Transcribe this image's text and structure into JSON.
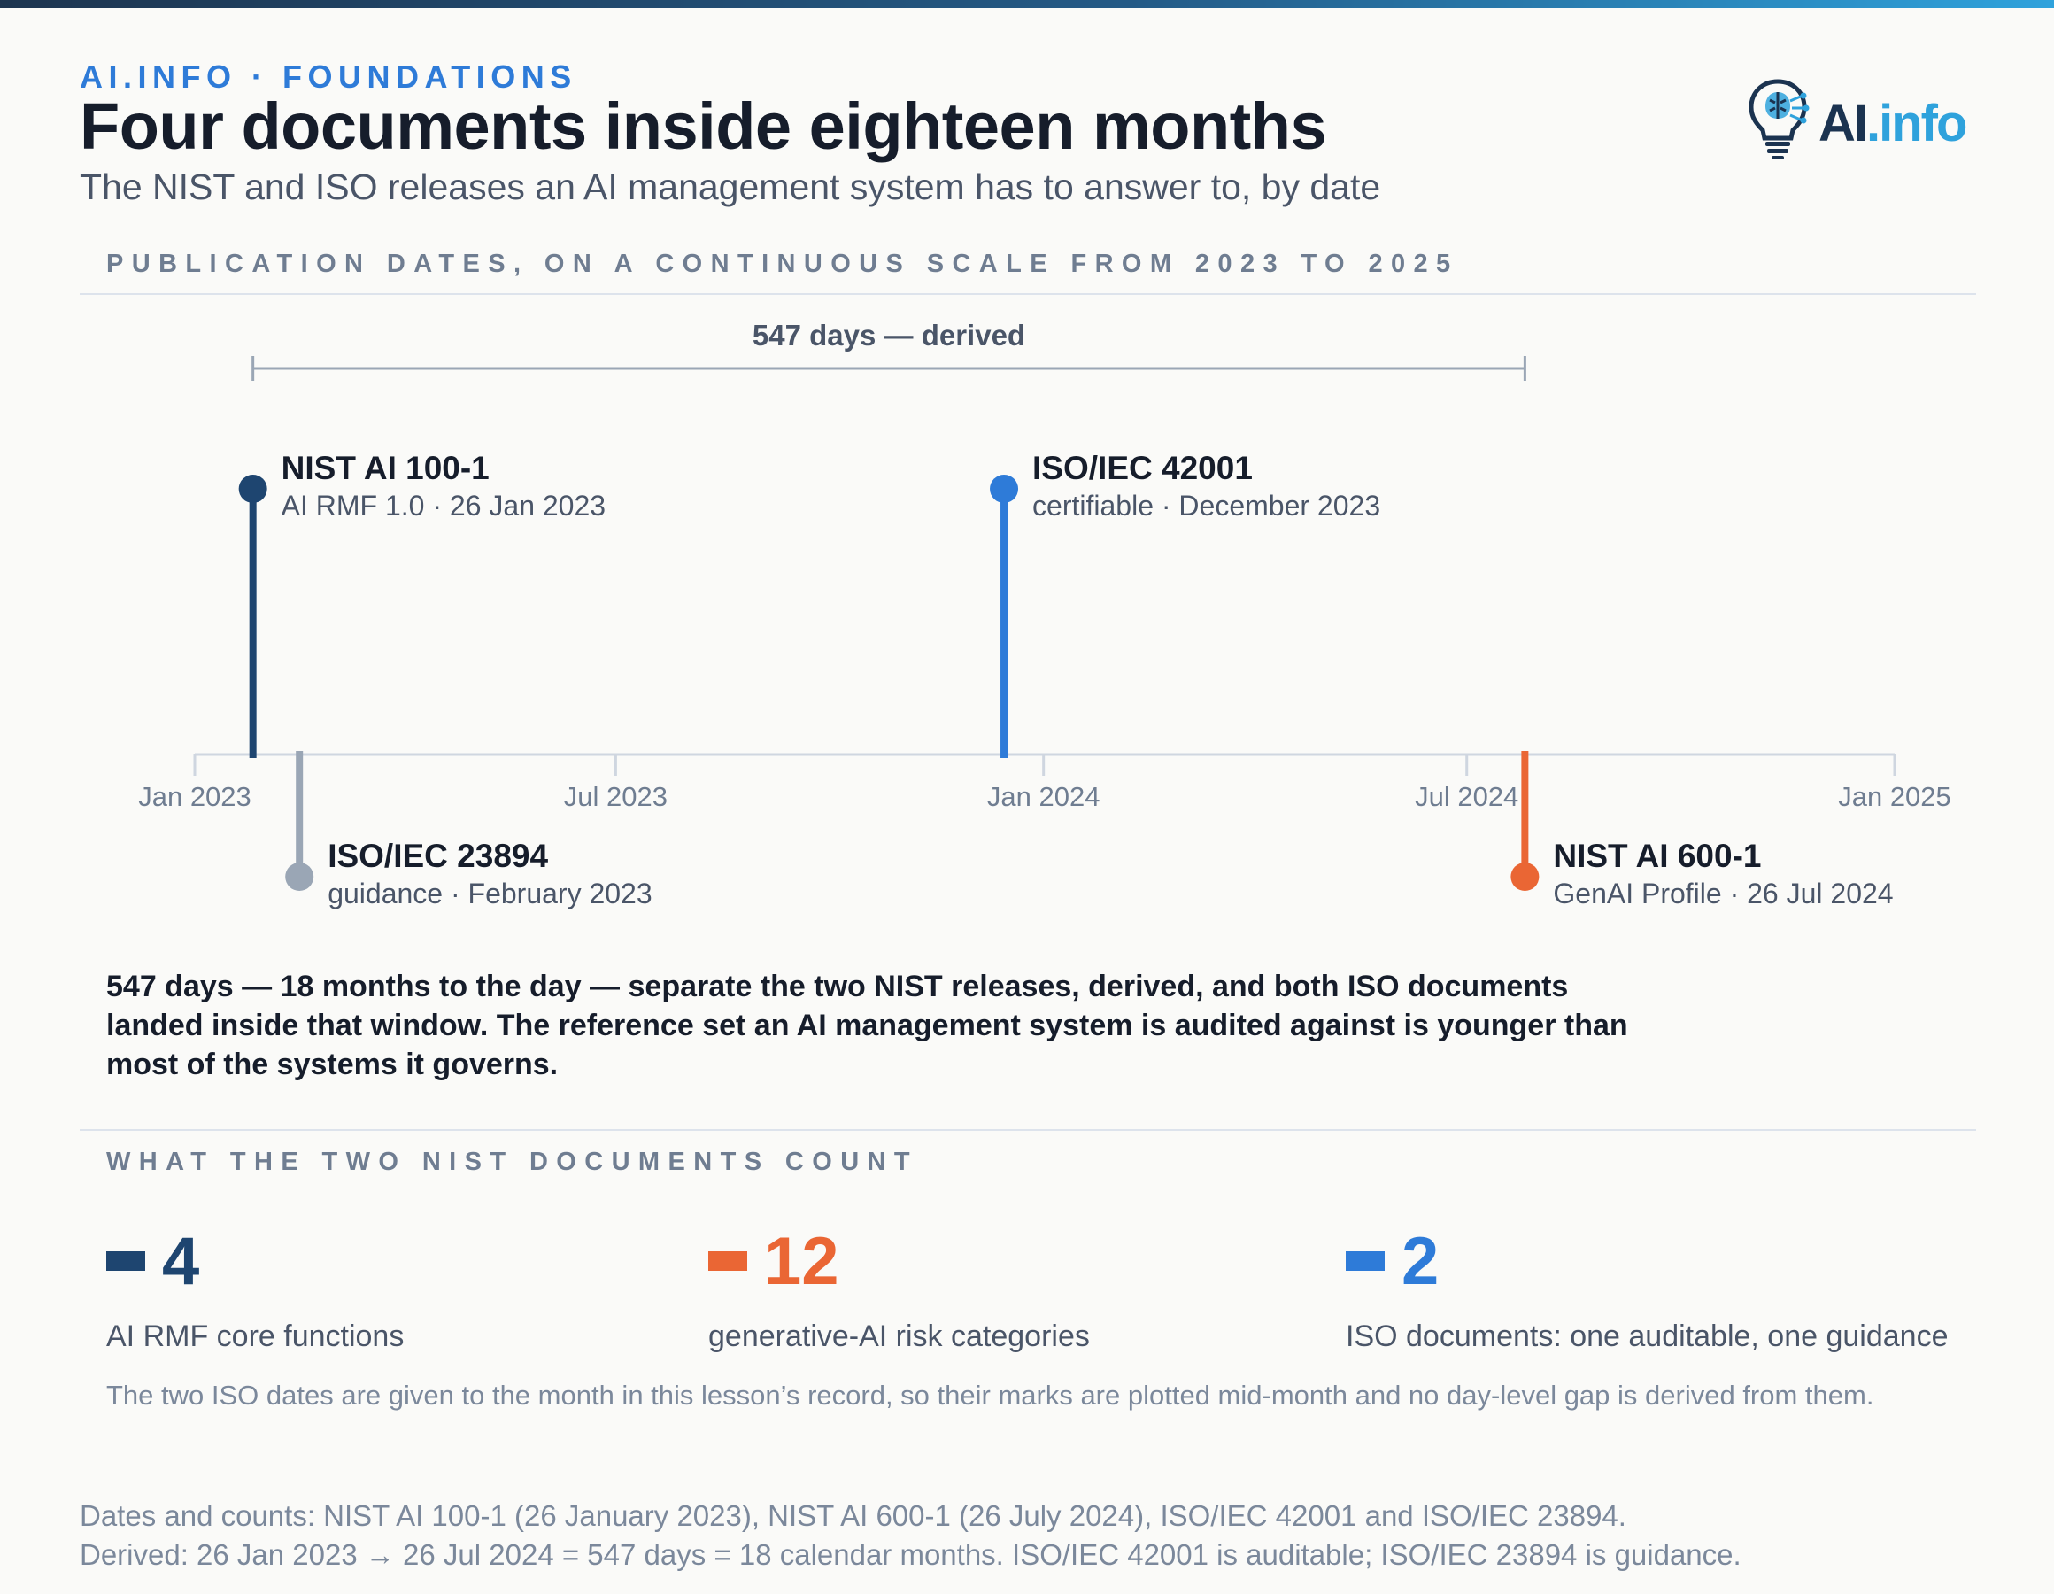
{
  "header": {
    "kicker": "AI.INFO · FOUNDATIONS",
    "title": "Four documents inside eighteen months",
    "subtitle": "The NIST and ISO releases an AI management system has to answer to, by date",
    "logo_text_a": "AI",
    "logo_text_b": ".info"
  },
  "timeline_section_label": "PUBLICATION DATES, ON A CONTINUOUS SCALE FROM 2023 TO 2025",
  "chart_data": {
    "type": "timeline",
    "x_axis": {
      "range": [
        "2023-01-01",
        "2025-01-01"
      ],
      "ticks": [
        {
          "date": "2023-01-01",
          "label": "Jan 2023"
        },
        {
          "date": "2023-07-01",
          "label": "Jul 2023"
        },
        {
          "date": "2024-01-01",
          "label": "Jan 2024"
        },
        {
          "date": "2024-07-01",
          "label": "Jul 2024"
        },
        {
          "date": "2025-01-01",
          "label": "Jan 2025"
        }
      ]
    },
    "events": [
      {
        "date": "2023-01-26",
        "name": "NIST AI 100-1",
        "detail": "AI RMF 1.0 · 26 Jan 2023",
        "color": "#1e4570",
        "side": "above"
      },
      {
        "date": "2023-02-15",
        "name": "ISO/IEC 23894",
        "detail": "guidance · February 2023",
        "color": "#9aa6b5",
        "side": "below"
      },
      {
        "date": "2023-12-15",
        "name": "ISO/IEC 42001",
        "detail": "certifiable · December 2023",
        "color": "#2e7bd8",
        "side": "above"
      },
      {
        "date": "2024-07-26",
        "name": "NIST AI 600-1",
        "detail": "GenAI Profile · 26 Jul 2024",
        "color": "#ea6634",
        "side": "below"
      }
    ],
    "span": {
      "from": "2023-01-26",
      "to": "2024-07-26",
      "label": "547 days — derived",
      "color": "#9aa6b5"
    }
  },
  "insight": "547 days — 18 months to the day — separate the two NIST releases, derived, and both ISO documents landed inside that window. The reference set an AI management system is audited against is younger than most of the systems it governs.",
  "counts_section_label": "WHAT THE TWO NIST DOCUMENTS COUNT",
  "stats": [
    {
      "value": "4",
      "label": "AI RMF core functions",
      "color": "#1e4570"
    },
    {
      "value": "12",
      "label": "generative-AI risk categories",
      "color": "#ea6634"
    },
    {
      "value": "2",
      "label": "ISO documents: one auditable, one guidance",
      "color": "#2e7bd8"
    }
  ],
  "note": "The two ISO dates are given to the month in this lesson’s record, so their marks are plotted mid-month and no day-level gap is derived from them.",
  "footer": {
    "line1": "Dates and counts: NIST AI 100-1 (26 January 2023), NIST AI 600-1 (26 July 2024), ISO/IEC 42001 and ISO/IEC 23894.",
    "line2": "Derived: 26 Jan 2023 → 26 Jul 2024 = 547 days = 18 calendar months. ISO/IEC 42001 is auditable; ISO/IEC 23894 is guidance."
  }
}
